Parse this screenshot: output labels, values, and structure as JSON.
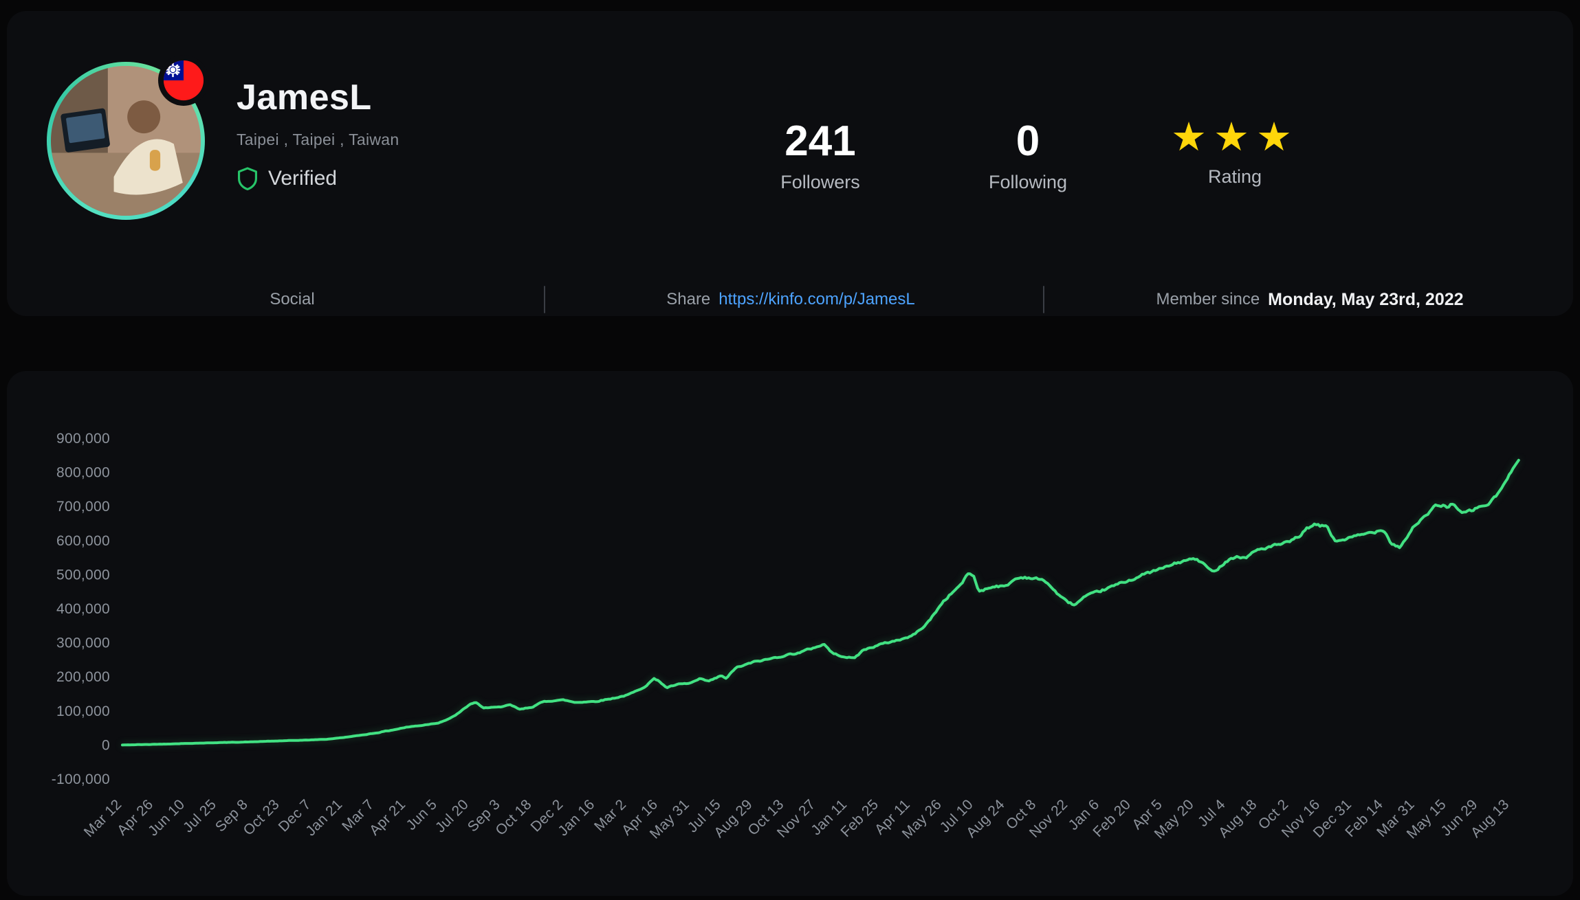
{
  "profile": {
    "name": "JamesL",
    "location": "Taipei , Taipei , Taiwan",
    "verified_label": "Verified",
    "flag": "taiwan"
  },
  "stats": {
    "followers": {
      "value": "241",
      "label": "Followers"
    },
    "following": {
      "value": "0",
      "label": "Following"
    },
    "rating": {
      "label": "Rating",
      "stars": 3
    }
  },
  "footer": {
    "social_label": "Social",
    "share_label": "Share",
    "share_url": "https://kinfo.com/p/JamesL",
    "member_since_label": "Member since",
    "member_since_value": "Monday, May 23rd, 2022"
  },
  "colors": {
    "line": "#42e283",
    "link": "#4da3ff",
    "star": "#ffd60a",
    "verified": "#27c469",
    "axis_label": "#8d939c"
  },
  "chart_data": {
    "type": "line",
    "title": "",
    "xlabel": "",
    "ylabel": "",
    "legend": "none",
    "grid": false,
    "ylim": [
      -100000,
      900000
    ],
    "ystep": 100000,
    "line_color": "#42e283",
    "ticks": [
      "Mar 12",
      "Apr 26",
      "Jun 10",
      "Jul 25",
      "Sep 8",
      "Oct 23",
      "Dec 7",
      "Jan 21",
      "Mar 7",
      "Apr 21",
      "Jun 5",
      "Jul 20",
      "Sep 3",
      "Oct 18",
      "Dec 2",
      "Jan 16",
      "Mar 2",
      "Apr 16",
      "May 31",
      "Jul 15",
      "Aug 29",
      "Oct 13",
      "Nov 27",
      "Jan 11",
      "Feb 25",
      "Apr 11",
      "May 26",
      "Jul 10",
      "Aug 24",
      "Oct 8",
      "Nov 22",
      "Jan 6",
      "Feb 20",
      "Apr 5",
      "May 20",
      "Jul 4",
      "Aug 18",
      "Oct 2",
      "Nov 16",
      "Dec 31",
      "Feb 14",
      "Mar 31",
      "May 15",
      "Jun 29",
      "Aug 13"
    ],
    "points": [
      [
        0,
        0
      ],
      [
        1,
        2000
      ],
      [
        2,
        4500
      ],
      [
        3,
        7000
      ],
      [
        4,
        9000
      ],
      [
        5,
        12000
      ],
      [
        6,
        15000
      ],
      [
        6.5,
        17000
      ],
      [
        7,
        22000
      ],
      [
        7.5,
        28000
      ],
      [
        8,
        35000
      ],
      [
        8.5,
        43000
      ],
      [
        9,
        52000
      ],
      [
        9.5,
        58000
      ],
      [
        10,
        65000
      ],
      [
        10.4,
        78000
      ],
      [
        10.7,
        96000
      ],
      [
        11,
        118000
      ],
      [
        11.2,
        126000
      ],
      [
        11.45,
        107000
      ],
      [
        11.7,
        112000
      ],
      [
        12,
        110000
      ],
      [
        12.3,
        118000
      ],
      [
        12.6,
        104000
      ],
      [
        12.9,
        110000
      ],
      [
        13,
        112000
      ],
      [
        13.35,
        127000
      ],
      [
        13.7,
        131000
      ],
      [
        14,
        132000
      ],
      [
        14.35,
        125000
      ],
      [
        14.7,
        127000
      ],
      [
        15,
        128000
      ],
      [
        15.5,
        136000
      ],
      [
        16,
        146000
      ],
      [
        16.3,
        158000
      ],
      [
        16.6,
        174000
      ],
      [
        16.85,
        194000
      ],
      [
        17,
        190000
      ],
      [
        17.25,
        168000
      ],
      [
        17.6,
        177000
      ],
      [
        18,
        181000
      ],
      [
        18.3,
        193000
      ],
      [
        18.6,
        187000
      ],
      [
        18.85,
        197000
      ],
      [
        19,
        204000
      ],
      [
        19.15,
        194000
      ],
      [
        19.45,
        227000
      ],
      [
        19.7,
        233000
      ],
      [
        20,
        243000
      ],
      [
        20.5,
        252000
      ],
      [
        21,
        263000
      ],
      [
        21.5,
        272000
      ],
      [
        22,
        288000
      ],
      [
        22.25,
        296000
      ],
      [
        22.55,
        267000
      ],
      [
        22.8,
        262000
      ],
      [
        23,
        258000
      ],
      [
        23.2,
        254000
      ],
      [
        23.5,
        279000
      ],
      [
        24,
        294000
      ],
      [
        24.5,
        306000
      ],
      [
        25,
        318000
      ],
      [
        25.3,
        338000
      ],
      [
        25.6,
        366000
      ],
      [
        25.85,
        398000
      ],
      [
        26,
        418000
      ],
      [
        26.3,
        446000
      ],
      [
        26.6,
        472000
      ],
      [
        26.85,
        506000
      ],
      [
        27,
        494000
      ],
      [
        27.15,
        452000
      ],
      [
        27.45,
        460000
      ],
      [
        27.7,
        468000
      ],
      [
        28,
        464000
      ],
      [
        28.3,
        487000
      ],
      [
        28.6,
        493000
      ],
      [
        29,
        488000
      ],
      [
        29.3,
        479000
      ],
      [
        29.6,
        449000
      ],
      [
        29.85,
        427000
      ],
      [
        30,
        419000
      ],
      [
        30.2,
        411000
      ],
      [
        30.5,
        433000
      ],
      [
        31,
        451000
      ],
      [
        31.5,
        469000
      ],
      [
        32,
        486000
      ],
      [
        32.5,
        504000
      ],
      [
        33,
        519000
      ],
      [
        33.5,
        536000
      ],
      [
        34,
        547000
      ],
      [
        34.3,
        531000
      ],
      [
        34.55,
        507000
      ],
      [
        34.8,
        523000
      ],
      [
        35,
        541000
      ],
      [
        35.3,
        553000
      ],
      [
        35.6,
        549000
      ],
      [
        36,
        573000
      ],
      [
        36.5,
        584000
      ],
      [
        37,
        594000
      ],
      [
        37.3,
        611000
      ],
      [
        37.6,
        637000
      ],
      [
        37.85,
        646000
      ],
      [
        38,
        641000
      ],
      [
        38.2,
        644000
      ],
      [
        38.45,
        597000
      ],
      [
        38.7,
        603000
      ],
      [
        39,
        609000
      ],
      [
        39.5,
        621000
      ],
      [
        40,
        634000
      ],
      [
        40.25,
        592000
      ],
      [
        40.5,
        581000
      ],
      [
        40.75,
        612000
      ],
      [
        41,
        648000
      ],
      [
        41.3,
        667000
      ],
      [
        41.6,
        699000
      ],
      [
        41.85,
        703000
      ],
      [
        42,
        699000
      ],
      [
        42.2,
        711000
      ],
      [
        42.45,
        679000
      ],
      [
        42.7,
        684000
      ],
      [
        43,
        697000
      ],
      [
        43.3,
        706000
      ],
      [
        43.55,
        728000
      ],
      [
        43.8,
        762000
      ],
      [
        44,
        793000
      ],
      [
        44.15,
        822000
      ],
      [
        44.3,
        845000
      ]
    ]
  }
}
